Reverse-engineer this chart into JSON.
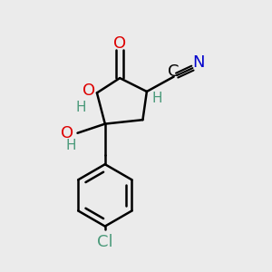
{
  "background_color": "#ebebeb",
  "figsize": [
    3.0,
    3.0
  ],
  "dpi": 100,
  "bond_color": "#000000",
  "bond_width": 1.8,
  "colors": {
    "O": "#dd0000",
    "N": "#0000cc",
    "C_label": "#000000",
    "H": "#4a9a7a",
    "Cl": "#4a9a7a"
  }
}
